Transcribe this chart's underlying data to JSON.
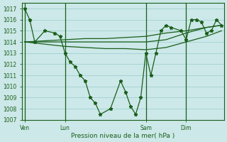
{
  "background_color": "#cce8e8",
  "grid_color": "#99cccc",
  "line_color": "#1a5e1a",
  "title": "Pression niveau de la mer( hPa )",
  "ylim": [
    1007,
    1017.5
  ],
  "yticks": [
    1007,
    1008,
    1009,
    1010,
    1011,
    1012,
    1013,
    1014,
    1015,
    1016,
    1017
  ],
  "day_labels": [
    "Ven",
    "Lun",
    "Sam",
    "Dim"
  ],
  "day_positions": [
    0,
    16,
    48,
    64
  ],
  "xlim": [
    -1,
    79
  ],
  "total_points": 80,
  "series1_x": [
    0,
    2,
    4,
    8,
    12,
    14,
    16,
    18,
    20,
    22,
    24,
    26,
    28,
    30,
    34,
    38,
    40,
    42,
    44,
    46,
    48,
    50,
    52,
    54,
    56,
    58,
    62,
    64,
    66,
    68,
    70,
    72,
    74,
    76,
    78
  ],
  "series1_y": [
    1017,
    1016,
    1014,
    1015,
    1014.8,
    1014.5,
    1013,
    1012.2,
    1011.8,
    1011,
    1010.5,
    1009,
    1008.5,
    1007.5,
    1008,
    1010.5,
    1009.5,
    1008.2,
    1007.5,
    1009,
    1013,
    1011,
    1013,
    1015,
    1015.5,
    1015.3,
    1015,
    1014.2,
    1016,
    1016,
    1015.8,
    1014.8,
    1015,
    1016,
    1015.5
  ],
  "series2_x": [
    0,
    8,
    16,
    24,
    32,
    40,
    48,
    56,
    64,
    72,
    78
  ],
  "series2_y": [
    1014,
    1013.8,
    1013.6,
    1013.5,
    1013.4,
    1013.4,
    1013.3,
    1013.5,
    1014,
    1014.5,
    1015
  ],
  "series3_x": [
    0,
    8,
    16,
    24,
    32,
    40,
    48,
    56,
    64,
    72,
    78
  ],
  "series3_y": [
    1014,
    1014.1,
    1014.2,
    1014.3,
    1014.3,
    1014.4,
    1014.5,
    1014.8,
    1015,
    1015.3,
    1015.5
  ],
  "series4_x": [
    0,
    8,
    16,
    24,
    32,
    40,
    48,
    56,
    64,
    72,
    78
  ],
  "series4_y": [
    1014,
    1014,
    1014,
    1014,
    1014,
    1014,
    1014,
    1014.2,
    1014.8,
    1015.3,
    1015.5
  ]
}
